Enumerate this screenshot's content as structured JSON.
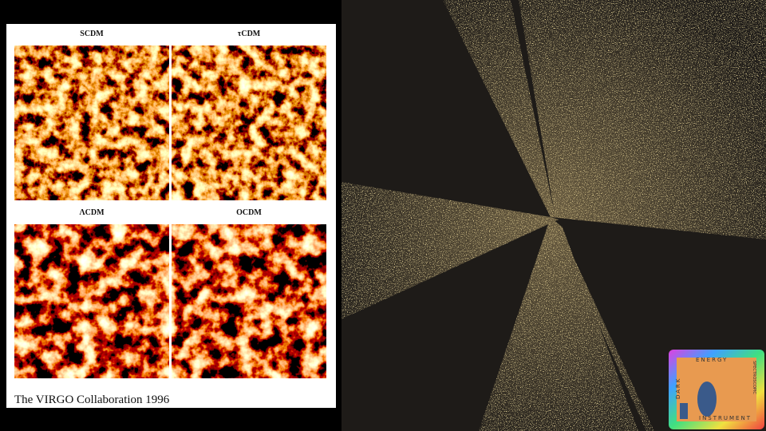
{
  "figure": {
    "panels": [
      {
        "label": "SCDM"
      },
      {
        "label": "τCDM"
      },
      {
        "label": "ΛCDM"
      },
      {
        "label": "OCDM"
      }
    ],
    "caption": "The VIRGO Collaboration 1996"
  },
  "logo": {
    "top": "ENERGY",
    "left": "DARK",
    "bottom": "INSTRUMENT",
    "right": "SPECTROSCOPIC"
  }
}
